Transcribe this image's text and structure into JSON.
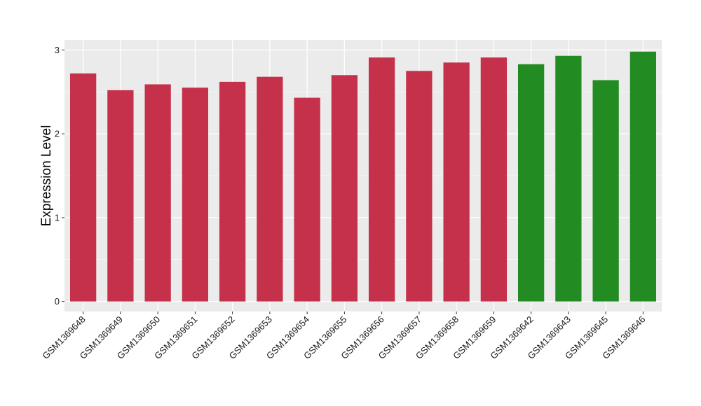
{
  "chart_data": {
    "type": "bar",
    "title": "",
    "xlabel": "",
    "ylabel": "Expression Level",
    "ylim": [
      -0.12,
      3.12
    ],
    "yticks": [
      0,
      1,
      2,
      3
    ],
    "grid": true,
    "categories": [
      "GSM1369648",
      "GSM1369649",
      "GSM1369650",
      "GSM1369651",
      "GSM1369652",
      "GSM1369653",
      "GSM1369654",
      "GSM1369655",
      "GSM1369656",
      "GSM1369657",
      "GSM1369658",
      "GSM1369659",
      "GSM1369642",
      "GSM1369643",
      "GSM1369645",
      "GSM1369646"
    ],
    "values": [
      2.72,
      2.52,
      2.59,
      2.55,
      2.62,
      2.68,
      2.43,
      2.7,
      2.91,
      2.75,
      2.85,
      2.91,
      2.83,
      2.93,
      2.64,
      2.98
    ],
    "bar_colors": [
      "#C5314A",
      "#C5314A",
      "#C5314A",
      "#C5314A",
      "#C5314A",
      "#C5314A",
      "#C5314A",
      "#C5314A",
      "#C5314A",
      "#C5314A",
      "#C5314A",
      "#C5314A",
      "#228B22",
      "#228B22",
      "#228B22",
      "#228B22"
    ],
    "panel_background": "#EBEBEB",
    "gridline_color": "#FFFFFF"
  }
}
